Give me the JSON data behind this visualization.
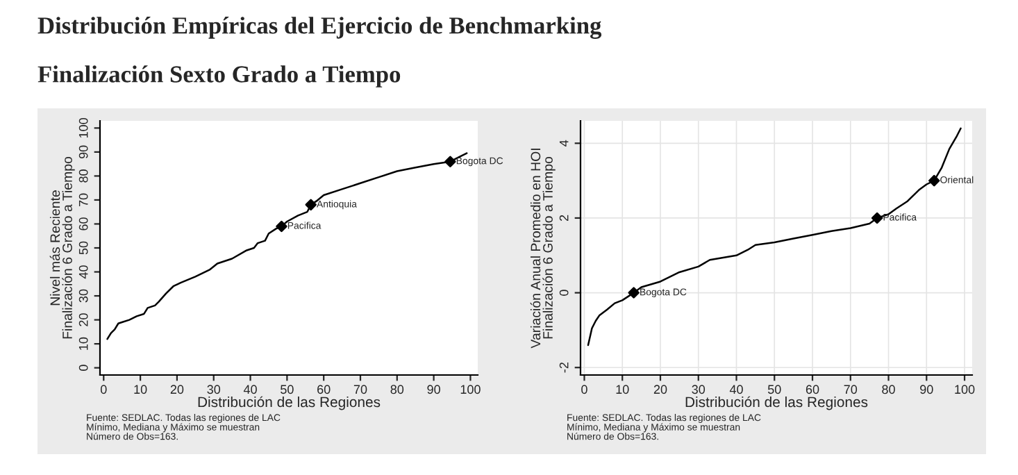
{
  "chart_data": [
    {
      "type": "line",
      "title": "Distribución Empíricas del Ejercicio de Benchmarking",
      "subtitle": "Finalización Sexto Grado a Tiempo",
      "xlabel": "Distribución de las Regiones",
      "ylabel": "Nivel más Reciente\nFinalización 6 Grado a Tiempo",
      "xlim": [
        -1,
        102
      ],
      "ylim": [
        -3,
        103
      ],
      "xticks": [
        0,
        10,
        20,
        30,
        40,
        50,
        60,
        70,
        80,
        90,
        100
      ],
      "yticks": [
        0,
        10,
        20,
        30,
        40,
        50,
        60,
        70,
        80,
        90,
        100
      ],
      "grid": false,
      "legend": false,
      "series": [
        {
          "color": "#000000",
          "marker": "none",
          "x": [
            1,
            2,
            3,
            4,
            5,
            7,
            9,
            11,
            12,
            14,
            15,
            17,
            19,
            21,
            25,
            29,
            31,
            35,
            39,
            41,
            42,
            44,
            45,
            47,
            48.5,
            50,
            53,
            55.5,
            56.5,
            58,
            60,
            65,
            70,
            75,
            80,
            85,
            90,
            94.5,
            97,
            99
          ],
          "values": [
            12,
            14.5,
            16,
            18.5,
            19,
            20,
            21.5,
            22.5,
            25,
            26,
            27.5,
            31,
            34,
            35.5,
            38,
            41,
            43.5,
            45.5,
            49,
            50,
            52,
            53,
            56,
            58,
            59,
            61,
            63.5,
            65,
            68,
            69.5,
            72,
            74.5,
            77,
            79.5,
            82,
            83.5,
            85,
            86,
            88,
            89.5
          ]
        },
        {
          "type": "scatter",
          "color": "#000000",
          "marker": "diamond",
          "x": [
            48.5,
            56.5,
            94.5
          ],
          "values": [
            59,
            68,
            86
          ]
        }
      ],
      "annotations": [
        {
          "text": "Pacifica",
          "x": 48.5,
          "y": 59
        },
        {
          "text": "Antioquia",
          "x": 56.5,
          "y": 68
        },
        {
          "text": "Bogota DC",
          "x": 94.5,
          "y": 86
        },
        "Fuente: SEDLAC. Todas las regiones de LAC\nMínimo, Mediana y Máximo se muestran\nNúmero de Obs=163."
      ]
    },
    {
      "type": "line",
      "xlabel": "Distribución de las Regiones",
      "ylabel": "Variación Anual Promedio en HOI\nFinalización 6 Grado a Tiempo",
      "xlim": [
        -1,
        102
      ],
      "ylim": [
        -2.2,
        4.6
      ],
      "xticks": [
        0,
        10,
        20,
        30,
        40,
        50,
        60,
        70,
        80,
        90,
        100
      ],
      "yticks": [
        -2,
        0,
        2,
        4
      ],
      "grid": true,
      "legend": false,
      "series": [
        {
          "color": "#000000",
          "marker": "none",
          "x": [
            1,
            2,
            3,
            4,
            6,
            8,
            10,
            13,
            15,
            20,
            25,
            30,
            33,
            40,
            43,
            45,
            50,
            55,
            60,
            65,
            70,
            75,
            77,
            80,
            82,
            85,
            88,
            90,
            92,
            94,
            96,
            98,
            99
          ],
          "values": [
            -1.4,
            -0.95,
            -0.75,
            -0.6,
            -0.45,
            -0.28,
            -0.2,
            0,
            0.15,
            0.3,
            0.55,
            0.7,
            0.88,
            1.0,
            1.15,
            1.28,
            1.35,
            1.45,
            1.55,
            1.65,
            1.73,
            1.85,
            2,
            2.1,
            2.25,
            2.45,
            2.75,
            2.9,
            3,
            3.35,
            3.85,
            4.2,
            4.4
          ]
        },
        {
          "type": "scatter",
          "color": "#000000",
          "marker": "diamond",
          "x": [
            13,
            77,
            92
          ],
          "values": [
            0,
            2,
            3
          ]
        }
      ],
      "annotations": [
        {
          "text": "Bogota DC",
          "x": 13,
          "y": 0
        },
        {
          "text": "Pacifica",
          "x": 77,
          "y": 2
        },
        {
          "text": "Oriental",
          "x": 92,
          "y": 3
        },
        "Fuente: SEDLAC. Todas las regiones de LAC\nMínimo, Mediana y Máximo se muestran\nNúmero de Obs=163."
      ]
    }
  ]
}
